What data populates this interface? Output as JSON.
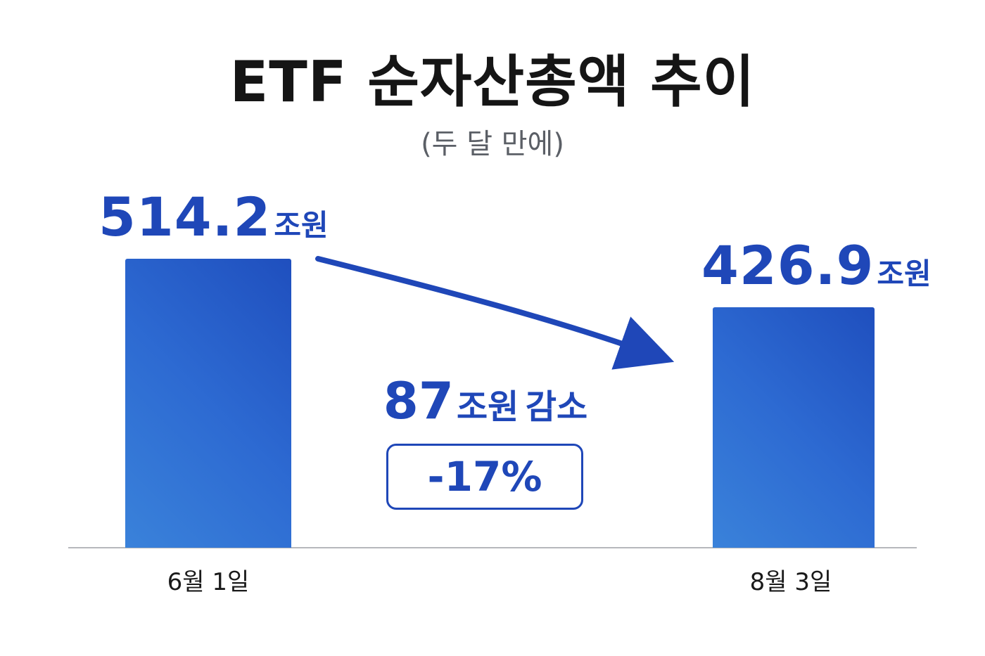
{
  "title": "ETF 순자산총액 추이",
  "subtitle": "(두 달 만에)",
  "colors": {
    "bar": "#2d6ad2",
    "accent": "#1f47b8",
    "axis": "#b6b8bc"
  },
  "change": {
    "amount": "87",
    "unit": "조원",
    "label": "감소",
    "percent": "-17%"
  },
  "chart_data": {
    "type": "bar",
    "categories": [
      "6월 1일",
      "8월 3일"
    ],
    "values": [
      514.2,
      426.9
    ],
    "value_labels": [
      "514.2",
      "426.9"
    ],
    "unit": "조원",
    "title": "ETF 순자산총액 추이",
    "subtitle": "(두 달 만에)",
    "xlabel": "",
    "ylabel": "",
    "grid": false,
    "legend": "none",
    "annotations": [
      {
        "from": "6월 1일",
        "to": "8월 3일",
        "change": "87조원 감소",
        "percent": "-17%"
      }
    ]
  }
}
